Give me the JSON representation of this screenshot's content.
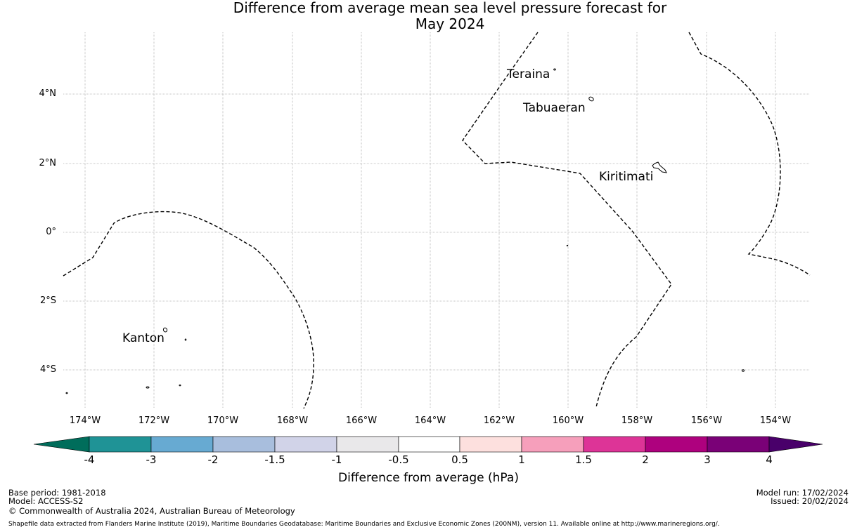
{
  "title": {
    "line1": "Difference from average mean sea level pressure forecast for",
    "line2": "May 2024"
  },
  "map": {
    "lat_range": [
      -5,
      6
    ],
    "lon_range": [
      -175,
      -153
    ],
    "lat_ticks": [
      "4°N",
      "2°N",
      "0°",
      "2°S",
      "4°S"
    ],
    "lon_ticks": [
      "174°W",
      "172°W",
      "170°W",
      "168°W",
      "166°W",
      "164°W",
      "162°W",
      "160°W",
      "158°W",
      "156°W",
      "154°W"
    ],
    "grid": true,
    "boundary_style": "dashed",
    "places": [
      {
        "name": "Teraina",
        "lon": -161.8,
        "lat": 4.55
      },
      {
        "name": "Tabuaeran",
        "lon": -161.4,
        "lat": 3.55
      },
      {
        "name": "Kiritimati",
        "lon": -159.1,
        "lat": 1.57
      },
      {
        "name": "Kanton",
        "lon": -173.0,
        "lat": -3.12
      }
    ]
  },
  "colorbar": {
    "labels": [
      "-4",
      "-3",
      "-2",
      "-1.5",
      "-1",
      "-0.5",
      "0.5",
      "1",
      "1.5",
      "2",
      "3",
      "4"
    ],
    "colors": [
      "#006d5b",
      "#1f9396",
      "#67aad2",
      "#a8bedd",
      "#d1d3e8",
      "#e9e8ea",
      "#ffffff",
      "#fde0de",
      "#f69fbb",
      "#dd3497",
      "#ae017e",
      "#7a0177",
      "#49006a"
    ],
    "title": "Difference from average (hPa)"
  },
  "footer": {
    "base_period": "Base period: 1981-2018",
    "model": "Model: ACCESS-S2",
    "copyright": "© Commonwealth of Australia 2024, Australian Bureau of Meteorology",
    "model_run": "Model run: 17/02/2024",
    "issued": "Issued: 20/02/2024",
    "shapefile": "Shapefile data extracted from Flanders Marine Institute (2019), Maritime Boundaries Geodatabase: Maritime Boundaries and Exclusive Economic Zones (200NM), version 11. Available online at http://www.marineregions.org/."
  }
}
